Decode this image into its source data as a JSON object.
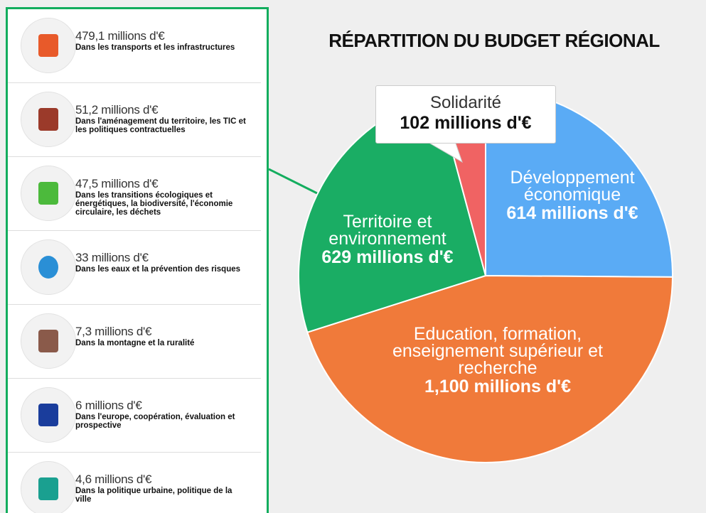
{
  "chart_data": {
    "type": "pie",
    "title": "RÉPARTITION DU BUDGET RÉGIONAL",
    "categories": [
      "Développement économique",
      "Education, formation, enseignement supérieur et recherche",
      "Territoire et environnement",
      "Solidarité"
    ],
    "values": [
      614,
      1100,
      629,
      102
    ],
    "value_labels": [
      "614 millions d'€",
      "1,100 millions d'€",
      "629 millions d'€",
      "102 millions d'€"
    ],
    "colors": [
      "#5aabf5",
      "#f07a3a",
      "#1aad64",
      "#f06363"
    ]
  },
  "list": {
    "items": [
      {
        "amount": "479,1 millions d'€",
        "description": "Dans les transports et les infrastructures"
      },
      {
        "amount": "51,2 millions d'€",
        "description": "Dans l'aménagement du territoire, les TIC et les politiques contractuelles"
      },
      {
        "amount": "47,5 millions d'€",
        "description": "Dans les transitions écologiques et énergétiques, la biodiversité, l'économie circulaire, les déchets"
      },
      {
        "amount": "33 millions d'€",
        "description": "Dans les eaux et la prévention des risques"
      },
      {
        "amount": "7,3 millions d'€",
        "description": "Dans la montagne et la ruralité"
      },
      {
        "amount": "6 millions d'€",
        "description": "Dans l'europe, coopération, évaluation et prospective"
      },
      {
        "amount": "4,6 millions d'€",
        "description": "Dans la politique urbaine, politique de la ville"
      }
    ]
  }
}
